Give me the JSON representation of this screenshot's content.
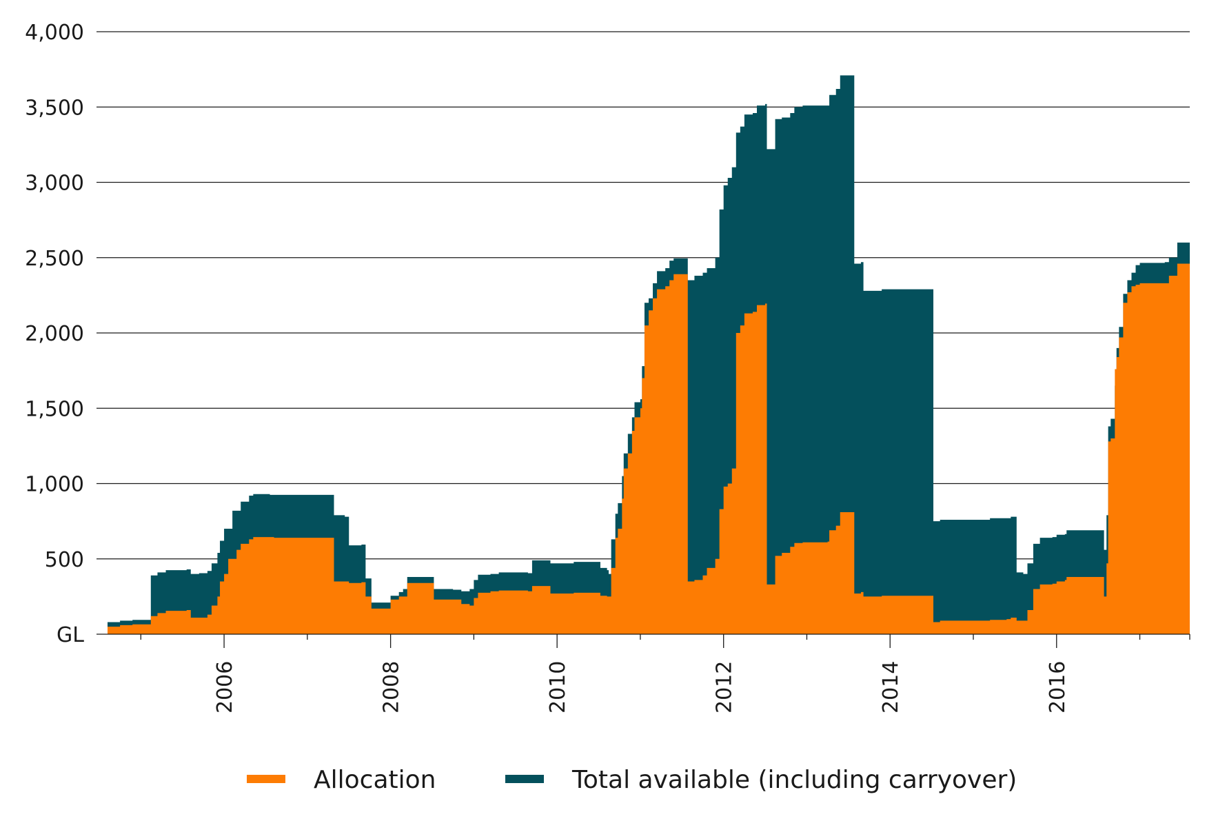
{
  "chart_data": {
    "type": "area",
    "ylabel": "GL",
    "ylim": [
      0,
      4000
    ],
    "xlim": [
      2004.6,
      2017.6
    ],
    "grid": "horizontal",
    "legend_position": "bottom",
    "y_ticks": [
      "GL",
      "500",
      "1,000",
      "1,500",
      "2,000",
      "2,500",
      "3,000",
      "3,500",
      "4,000"
    ],
    "y_tick_values": [
      0,
      500,
      1000,
      1500,
      2000,
      2500,
      3000,
      3500,
      4000
    ],
    "x_ticks": [
      "2006",
      "2008",
      "2010",
      "2012",
      "2014",
      "2016"
    ],
    "x_tick_values": [
      2006,
      2008,
      2010,
      2012,
      2014,
      2016
    ],
    "series": [
      {
        "name": "Total available (including carryover)",
        "color": "#04505c",
        "points": [
          [
            2004.6,
            80
          ],
          [
            2004.75,
            90
          ],
          [
            2004.9,
            95
          ],
          [
            2005.1,
            95
          ],
          [
            2005.12,
            390
          ],
          [
            2005.2,
            410
          ],
          [
            2005.3,
            425
          ],
          [
            2005.55,
            430
          ],
          [
            2005.6,
            400
          ],
          [
            2005.7,
            405
          ],
          [
            2005.8,
            420
          ],
          [
            2005.85,
            470
          ],
          [
            2005.92,
            540
          ],
          [
            2005.95,
            620
          ],
          [
            2006.0,
            700
          ],
          [
            2006.1,
            820
          ],
          [
            2006.2,
            880
          ],
          [
            2006.3,
            920
          ],
          [
            2006.35,
            930
          ],
          [
            2006.5,
            930
          ],
          [
            2006.55,
            925
          ],
          [
            2007.3,
            925
          ],
          [
            2007.32,
            790
          ],
          [
            2007.45,
            780
          ],
          [
            2007.5,
            590
          ],
          [
            2007.65,
            595
          ],
          [
            2007.7,
            370
          ],
          [
            2007.75,
            370
          ],
          [
            2007.77,
            210
          ],
          [
            2007.95,
            210
          ],
          [
            2008.0,
            255
          ],
          [
            2008.1,
            280
          ],
          [
            2008.15,
            300
          ],
          [
            2008.2,
            380
          ],
          [
            2008.5,
            380
          ],
          [
            2008.52,
            300
          ],
          [
            2008.75,
            295
          ],
          [
            2008.85,
            285
          ],
          [
            2008.95,
            300
          ],
          [
            2009.0,
            360
          ],
          [
            2009.05,
            395
          ],
          [
            2009.2,
            400
          ],
          [
            2009.3,
            410
          ],
          [
            2009.5,
            410
          ],
          [
            2009.65,
            405
          ],
          [
            2009.7,
            490
          ],
          [
            2009.9,
            490
          ],
          [
            2009.92,
            470
          ],
          [
            2010.15,
            470
          ],
          [
            2010.2,
            480
          ],
          [
            2010.5,
            480
          ],
          [
            2010.52,
            440
          ],
          [
            2010.6,
            425
          ],
          [
            2010.62,
            400
          ],
          [
            2010.65,
            630
          ],
          [
            2010.7,
            800
          ],
          [
            2010.73,
            870
          ],
          [
            2010.78,
            1050
          ],
          [
            2010.8,
            1200
          ],
          [
            2010.85,
            1330
          ],
          [
            2010.9,
            1440
          ],
          [
            2010.93,
            1540
          ],
          [
            2011.0,
            1560
          ],
          [
            2011.02,
            1780
          ],
          [
            2011.05,
            2200
          ],
          [
            2011.1,
            2230
          ],
          [
            2011.15,
            2330
          ],
          [
            2011.2,
            2410
          ],
          [
            2011.3,
            2430
          ],
          [
            2011.35,
            2480
          ],
          [
            2011.4,
            2495
          ],
          [
            2011.55,
            2495
          ],
          [
            2011.57,
            2350
          ],
          [
            2011.65,
            2380
          ],
          [
            2011.75,
            2400
          ],
          [
            2011.8,
            2430
          ],
          [
            2011.9,
            2500
          ],
          [
            2011.95,
            2820
          ],
          [
            2012.0,
            2980
          ],
          [
            2012.05,
            3030
          ],
          [
            2012.1,
            3100
          ],
          [
            2012.15,
            3330
          ],
          [
            2012.2,
            3370
          ],
          [
            2012.25,
            3450
          ],
          [
            2012.35,
            3460
          ],
          [
            2012.4,
            3510
          ],
          [
            2012.5,
            3520
          ],
          [
            2012.52,
            3220
          ],
          [
            2012.6,
            3220
          ],
          [
            2012.62,
            3420
          ],
          [
            2012.7,
            3430
          ],
          [
            2012.8,
            3460
          ],
          [
            2012.85,
            3500
          ],
          [
            2012.95,
            3510
          ],
          [
            2013.25,
            3510
          ],
          [
            2013.27,
            3580
          ],
          [
            2013.35,
            3620
          ],
          [
            2013.4,
            3710
          ],
          [
            2013.55,
            3710
          ],
          [
            2013.57,
            2460
          ],
          [
            2013.65,
            2470
          ],
          [
            2013.68,
            2280
          ],
          [
            2013.9,
            2290
          ],
          [
            2014.3,
            2290
          ],
          [
            2014.5,
            2290
          ],
          [
            2014.52,
            750
          ],
          [
            2014.6,
            760
          ],
          [
            2015.1,
            760
          ],
          [
            2015.2,
            770
          ],
          [
            2015.4,
            770
          ],
          [
            2015.45,
            780
          ],
          [
            2015.5,
            780
          ],
          [
            2015.52,
            410
          ],
          [
            2015.6,
            400
          ],
          [
            2015.65,
            470
          ],
          [
            2015.72,
            600
          ],
          [
            2015.8,
            640
          ],
          [
            2015.95,
            645
          ],
          [
            2016.0,
            660
          ],
          [
            2016.1,
            665
          ],
          [
            2016.12,
            690
          ],
          [
            2016.55,
            690
          ],
          [
            2016.57,
            560
          ],
          [
            2016.6,
            790
          ],
          [
            2016.62,
            1380
          ],
          [
            2016.65,
            1430
          ],
          [
            2016.7,
            1650
          ],
          [
            2016.72,
            1900
          ],
          [
            2016.75,
            2040
          ],
          [
            2016.8,
            2260
          ],
          [
            2016.85,
            2350
          ],
          [
            2016.9,
            2400
          ],
          [
            2016.95,
            2450
          ],
          [
            2017.0,
            2465
          ],
          [
            2017.3,
            2470
          ],
          [
            2017.35,
            2500
          ],
          [
            2017.45,
            2600
          ],
          [
            2017.6,
            2610
          ]
        ]
      },
      {
        "name": "Allocation",
        "color": "#fd7c03",
        "points": [
          [
            2004.6,
            50
          ],
          [
            2004.75,
            60
          ],
          [
            2004.9,
            65
          ],
          [
            2005.1,
            65
          ],
          [
            2005.12,
            120
          ],
          [
            2005.2,
            140
          ],
          [
            2005.3,
            155
          ],
          [
            2005.55,
            160
          ],
          [
            2005.6,
            110
          ],
          [
            2005.7,
            110
          ],
          [
            2005.8,
            130
          ],
          [
            2005.85,
            190
          ],
          [
            2005.92,
            250
          ],
          [
            2005.95,
            350
          ],
          [
            2006.0,
            400
          ],
          [
            2006.05,
            500
          ],
          [
            2006.15,
            560
          ],
          [
            2006.2,
            600
          ],
          [
            2006.3,
            630
          ],
          [
            2006.35,
            645
          ],
          [
            2006.55,
            645
          ],
          [
            2006.6,
            640
          ],
          [
            2007.3,
            640
          ],
          [
            2007.32,
            350
          ],
          [
            2007.45,
            350
          ],
          [
            2007.5,
            340
          ],
          [
            2007.65,
            345
          ],
          [
            2007.7,
            250
          ],
          [
            2007.75,
            250
          ],
          [
            2007.77,
            170
          ],
          [
            2007.95,
            170
          ],
          [
            2008.0,
            230
          ],
          [
            2008.1,
            250
          ],
          [
            2008.2,
            340
          ],
          [
            2008.5,
            340
          ],
          [
            2008.52,
            230
          ],
          [
            2008.75,
            230
          ],
          [
            2008.85,
            200
          ],
          [
            2008.95,
            190
          ],
          [
            2009.0,
            240
          ],
          [
            2009.05,
            275
          ],
          [
            2009.2,
            285
          ],
          [
            2009.3,
            290
          ],
          [
            2009.5,
            290
          ],
          [
            2009.65,
            285
          ],
          [
            2009.7,
            320
          ],
          [
            2009.9,
            320
          ],
          [
            2009.92,
            270
          ],
          [
            2010.15,
            270
          ],
          [
            2010.2,
            275
          ],
          [
            2010.5,
            275
          ],
          [
            2010.52,
            255
          ],
          [
            2010.6,
            250
          ],
          [
            2010.65,
            440
          ],
          [
            2010.7,
            640
          ],
          [
            2010.73,
            700
          ],
          [
            2010.78,
            900
          ],
          [
            2010.8,
            1100
          ],
          [
            2010.85,
            1200
          ],
          [
            2010.9,
            1350
          ],
          [
            2010.93,
            1440
          ],
          [
            2011.0,
            1500
          ],
          [
            2011.02,
            1700
          ],
          [
            2011.05,
            2050
          ],
          [
            2011.1,
            2150
          ],
          [
            2011.15,
            2230
          ],
          [
            2011.2,
            2290
          ],
          [
            2011.3,
            2310
          ],
          [
            2011.35,
            2350
          ],
          [
            2011.4,
            2390
          ],
          [
            2011.55,
            2390
          ],
          [
            2011.57,
            350
          ],
          [
            2011.65,
            360
          ],
          [
            2011.75,
            390
          ],
          [
            2011.8,
            440
          ],
          [
            2011.9,
            500
          ],
          [
            2011.95,
            830
          ],
          [
            2012.0,
            980
          ],
          [
            2012.05,
            1000
          ],
          [
            2012.1,
            1100
          ],
          [
            2012.15,
            2000
          ],
          [
            2012.2,
            2050
          ],
          [
            2012.25,
            2130
          ],
          [
            2012.35,
            2140
          ],
          [
            2012.4,
            2185
          ],
          [
            2012.5,
            2195
          ],
          [
            2012.52,
            330
          ],
          [
            2012.6,
            330
          ],
          [
            2012.62,
            520
          ],
          [
            2012.7,
            540
          ],
          [
            2012.8,
            580
          ],
          [
            2012.85,
            605
          ],
          [
            2012.95,
            610
          ],
          [
            2013.25,
            615
          ],
          [
            2013.27,
            690
          ],
          [
            2013.35,
            720
          ],
          [
            2013.4,
            810
          ],
          [
            2013.55,
            810
          ],
          [
            2013.57,
            270
          ],
          [
            2013.65,
            280
          ],
          [
            2013.68,
            250
          ],
          [
            2013.9,
            255
          ],
          [
            2014.3,
            255
          ],
          [
            2014.5,
            255
          ],
          [
            2014.52,
            80
          ],
          [
            2014.6,
            90
          ],
          [
            2015.1,
            90
          ],
          [
            2015.2,
            95
          ],
          [
            2015.4,
            100
          ],
          [
            2015.45,
            110
          ],
          [
            2015.5,
            110
          ],
          [
            2015.52,
            90
          ],
          [
            2015.6,
            90
          ],
          [
            2015.65,
            160
          ],
          [
            2015.72,
            300
          ],
          [
            2015.8,
            330
          ],
          [
            2015.95,
            335
          ],
          [
            2016.0,
            350
          ],
          [
            2016.1,
            360
          ],
          [
            2016.12,
            380
          ],
          [
            2016.55,
            380
          ],
          [
            2016.57,
            250
          ],
          [
            2016.6,
            470
          ],
          [
            2016.62,
            1280
          ],
          [
            2016.65,
            1300
          ],
          [
            2016.7,
            1760
          ],
          [
            2016.72,
            1840
          ],
          [
            2016.75,
            1970
          ],
          [
            2016.8,
            2200
          ],
          [
            2016.85,
            2270
          ],
          [
            2016.9,
            2310
          ],
          [
            2016.95,
            2320
          ],
          [
            2017.0,
            2330
          ],
          [
            2017.3,
            2330
          ],
          [
            2017.35,
            2380
          ],
          [
            2017.45,
            2460
          ],
          [
            2017.6,
            2470
          ]
        ]
      }
    ]
  },
  "legend": {
    "items": [
      {
        "label": "Allocation",
        "color": "#fd7c03"
      },
      {
        "label": "Total available (including carryover)",
        "color": "#04505c"
      }
    ]
  }
}
